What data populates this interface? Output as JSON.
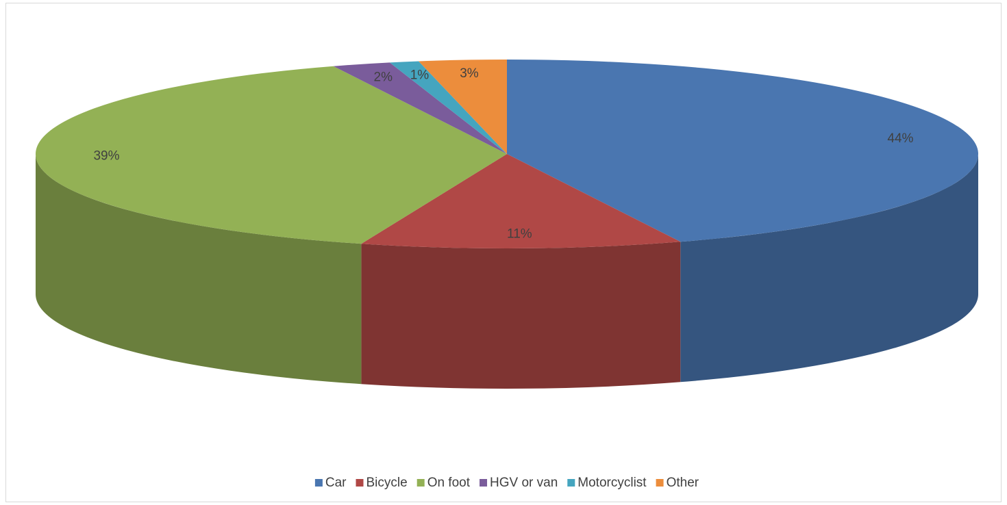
{
  "chart_data": {
    "type": "pie3d",
    "categories": [
      "Car",
      "Bicycle",
      "On foot",
      "HGV or van",
      "Motorcyclist",
      "Other"
    ],
    "values": [
      44,
      11,
      39,
      2,
      1,
      3
    ],
    "value_labels": [
      "44%",
      "11%",
      "39%",
      "2%",
      "1%",
      "3%"
    ],
    "colors": [
      "#4a76b0",
      "#b04846",
      "#93b155",
      "#7a5c9b",
      "#45a5bf",
      "#ec8d3c"
    ],
    "legend": "bottom"
  }
}
